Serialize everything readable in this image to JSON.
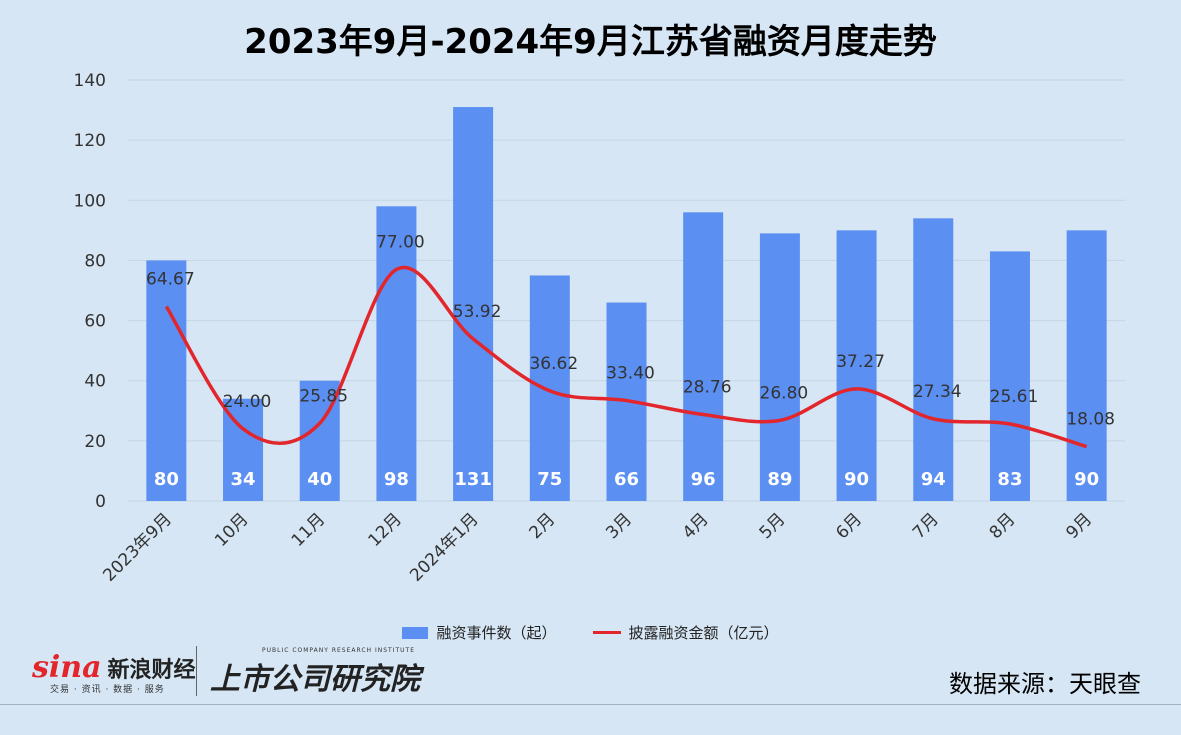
{
  "chart_data": {
    "type": "bar",
    "title": "2023年9月-2024年9月江苏省融资月度走势",
    "categories": [
      "2023年9月",
      "10月",
      "11月",
      "12月",
      "2024年1月",
      "2月",
      "3月",
      "4月",
      "5月",
      "6月",
      "7月",
      "8月",
      "9月"
    ],
    "ylim": [
      0,
      140
    ],
    "yticks": [
      0,
      20,
      40,
      60,
      80,
      100,
      120,
      140
    ],
    "grid": true,
    "legend_position": "bottom",
    "series": [
      {
        "name": "融资事件数（起）",
        "type": "bar",
        "color": "#5b8ff2",
        "values": [
          80,
          34,
          40,
          98,
          131,
          75,
          66,
          96,
          89,
          90,
          94,
          83,
          90
        ],
        "labels": [
          "80",
          "34",
          "40",
          "98",
          "131",
          "75",
          "66",
          "96",
          "89",
          "90",
          "94",
          "83",
          "90"
        ]
      },
      {
        "name": "披露融资金额（亿元）",
        "type": "line",
        "smooth": true,
        "color": "#e2262c",
        "values": [
          64.67,
          24.0,
          25.85,
          77.0,
          53.92,
          36.62,
          33.4,
          28.76,
          26.8,
          37.27,
          27.34,
          25.61,
          18.08
        ],
        "labels": [
          "64.67",
          "24.00",
          "25.85",
          "77.00",
          "53.92",
          "36.62",
          "33.40",
          "28.76",
          "26.80",
          "37.27",
          "27.34",
          "25.61",
          "18.08"
        ]
      }
    ]
  },
  "footer": {
    "sina_mark": "sina",
    "sina_name": "新浪财经",
    "sina_sub": "交易 · 资讯 · 数据 · 服务",
    "research_name": "上市公司研究院",
    "research_sub": "PUBLIC COMPANY RESEARCH INSTITUTE",
    "source": "数据来源：天眼查"
  }
}
